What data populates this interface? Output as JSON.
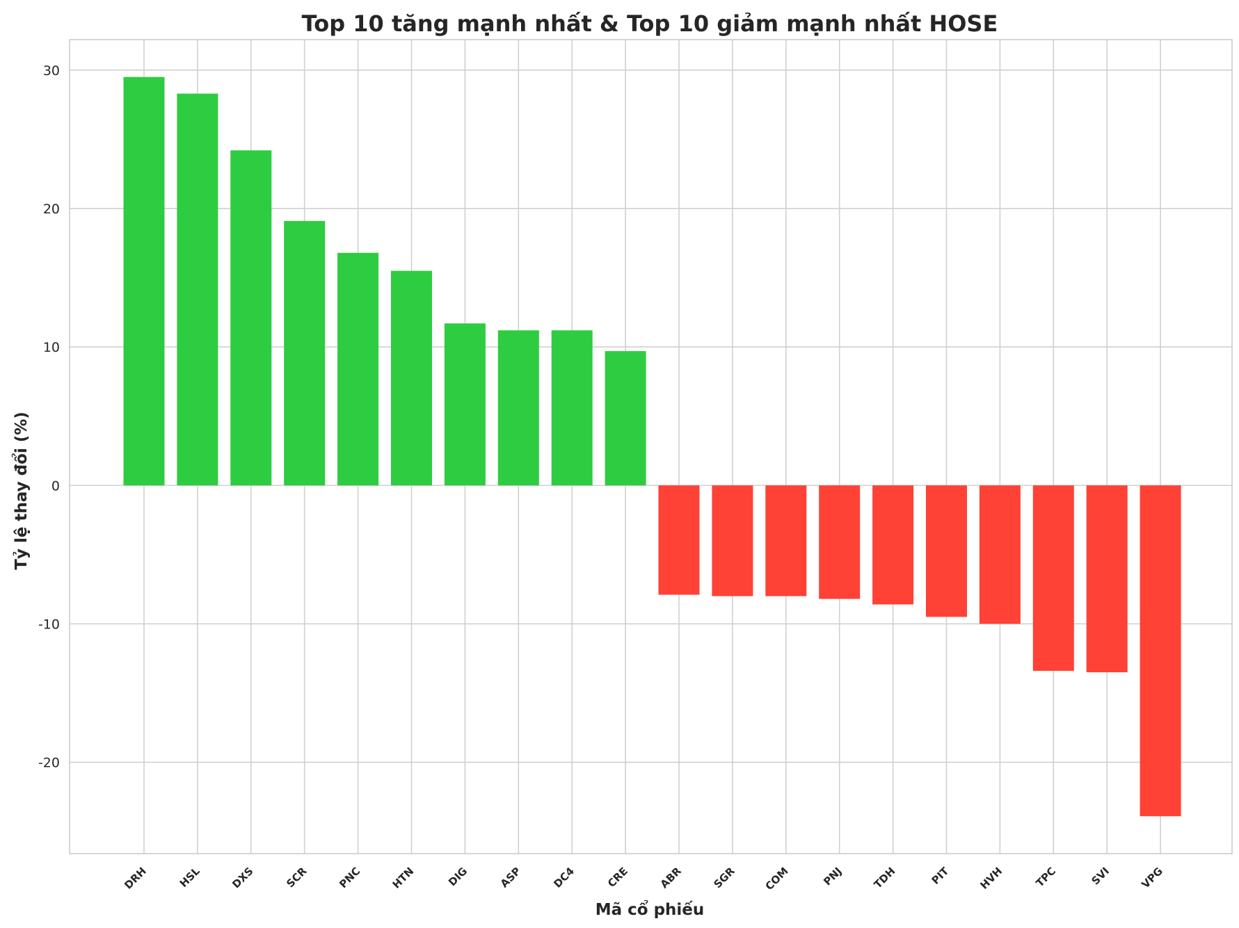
{
  "chart_data": {
    "type": "bar",
    "title": "Top 10 tăng mạnh nhất & Top 10 giảm mạnh nhất HOSE",
    "xlabel": "Mã cổ phiếu",
    "ylabel": "Tỷ lệ thay đổi (%)",
    "ylim": [
      -26.6,
      32.2
    ],
    "yticks": [
      -20,
      -10,
      0,
      10,
      20,
      30
    ],
    "ytick_labels": [
      "-20",
      "-10",
      "0",
      "10",
      "20",
      "30"
    ],
    "grid": true,
    "categories": [
      "DRH",
      "HSL",
      "DXS",
      "SCR",
      "PNC",
      "HTN",
      "DIG",
      "ASP",
      "DC4",
      "CRE",
      "ABR",
      "SGR",
      "COM",
      "PNJ",
      "TDH",
      "PIT",
      "HVH",
      "TPC",
      "SVI",
      "VPG"
    ],
    "values": [
      29.5,
      28.3,
      24.2,
      19.1,
      16.8,
      15.5,
      11.7,
      11.2,
      11.2,
      9.7,
      -7.9,
      -8.0,
      -8.0,
      -8.2,
      -8.6,
      -9.5,
      -10.0,
      -13.4,
      -13.5,
      -23.9
    ],
    "colors": {
      "increase": "#2ecc40",
      "decrease": "#ff4136"
    }
  }
}
